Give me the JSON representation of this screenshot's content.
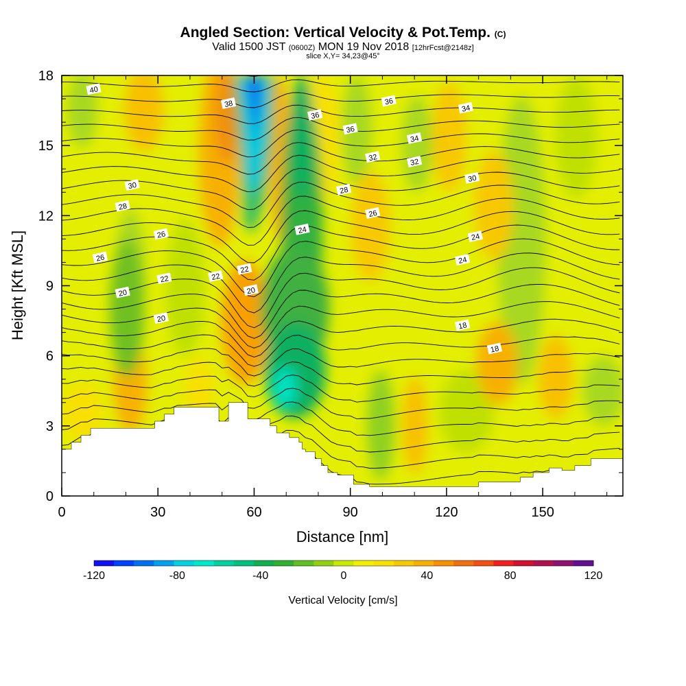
{
  "header": {
    "title_main": "Angled Section: Vertical Velocity & Pot.Temp.",
    "title_unit": "(C)",
    "valid_prefix": "Valid 1500 JST",
    "valid_utc": "(0600Z)",
    "valid_date": "MON 19 Nov 2018",
    "valid_fcst": "[12hrFcst@2148z]",
    "slice": "slice X,Y= 34,23@45°"
  },
  "chart_data": {
    "type": "heatmap",
    "xlabel": "Distance [nm]",
    "ylabel": "Height [Kft MSL]",
    "xlim": [
      0,
      175
    ],
    "ylim": [
      0,
      18
    ],
    "x_ticks": [
      "0",
      "30",
      "60",
      "90",
      "120",
      "150"
    ],
    "y_ticks": [
      "0",
      "3",
      "6",
      "9",
      "12",
      "15",
      "18"
    ],
    "colorbar": {
      "title": "Vertical Velocity [cm/s]",
      "range": [
        -120,
        120
      ],
      "tick_labels": [
        "-120",
        "-80",
        "-40",
        "0",
        "40",
        "80",
        "120"
      ],
      "colors": [
        "#1010f0",
        "#0040ff",
        "#0070f0",
        "#00a0f0",
        "#00d0e0",
        "#00e8c8",
        "#00d0a0",
        "#00c080",
        "#10b050",
        "#30b030",
        "#60c020",
        "#90d010",
        "#c8e800",
        "#f0f000",
        "#f8e000",
        "#f8c800",
        "#f8b000",
        "#f89000",
        "#f07010",
        "#f05010",
        "#f02020",
        "#d01030",
        "#b01050",
        "#901070",
        "#601090"
      ]
    },
    "topography_kft": [
      [
        0,
        2.0
      ],
      [
        3,
        2.3
      ],
      [
        6,
        2.6
      ],
      [
        9,
        2.9
      ],
      [
        14,
        2.9
      ],
      [
        28,
        2.9
      ],
      [
        29,
        3.2
      ],
      [
        32,
        3.5
      ],
      [
        35,
        3.8
      ],
      [
        40,
        3.8
      ],
      [
        47,
        3.8
      ],
      [
        49,
        3.2
      ],
      [
        52,
        3.2
      ],
      [
        52,
        4.0
      ],
      [
        57,
        4.0
      ],
      [
        58,
        3.3
      ],
      [
        64,
        3.3
      ],
      [
        65,
        3.0
      ],
      [
        67,
        2.7
      ],
      [
        70,
        2.7
      ],
      [
        71,
        2.5
      ],
      [
        74,
        2.3
      ],
      [
        75,
        2.0
      ],
      [
        76,
        1.9
      ],
      [
        79,
        1.6
      ],
      [
        81,
        1.3
      ],
      [
        83,
        1.0
      ],
      [
        86,
        0.9
      ],
      [
        91,
        0.5
      ],
      [
        96,
        0.4
      ],
      [
        100,
        0.4
      ],
      [
        110,
        0.4
      ],
      [
        114,
        0.4
      ],
      [
        120,
        0.4
      ],
      [
        128,
        0.4
      ],
      [
        130,
        0.6
      ],
      [
        142,
        0.6
      ],
      [
        143,
        0.8
      ],
      [
        147,
        1.0
      ],
      [
        152,
        1.2
      ],
      [
        156,
        1.1
      ],
      [
        160,
        1.3
      ],
      [
        165,
        1.6
      ],
      [
        175,
        1.6
      ]
    ],
    "theta_contour_labels": [
      "40",
      "36",
      "38",
      "36",
      "34",
      "36",
      "34",
      "32",
      "32",
      "30",
      "30",
      "28",
      "28",
      "26",
      "26",
      "24",
      "24",
      "26",
      "24",
      "22",
      "22",
      "22",
      "20",
      "20",
      "20",
      "18",
      "18"
    ],
    "velocity_features": [
      {
        "name": "downdraft-core",
        "x": 57,
        "y": 16,
        "value": -90
      },
      {
        "name": "downdraft-lower",
        "x": 70,
        "y": 5,
        "value": -60
      },
      {
        "name": "updraft-upper",
        "x": 48,
        "y": 15,
        "value": 40
      },
      {
        "name": "updraft-lower",
        "x": 57,
        "y": 7.5,
        "value": 50
      },
      {
        "name": "updraft-west",
        "x": 22,
        "y": 5,
        "value": 40
      },
      {
        "name": "updraft-east",
        "x": 132,
        "y": 6,
        "value": 35
      }
    ]
  }
}
